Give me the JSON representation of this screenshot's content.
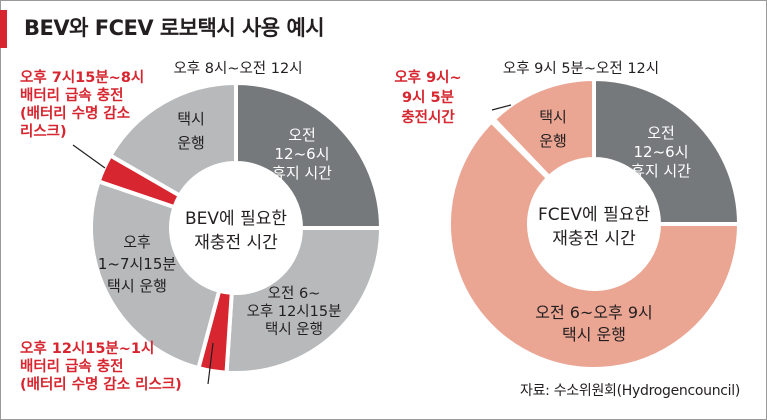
{
  "title": "BEV와 FCEV 로보택시 사용 예시",
  "source": "자료: 수소위원회(Hydrogencouncil)",
  "colors": {
    "dark_gray": "#76797b",
    "light_gray": "#b7b9bb",
    "red": "#d7262f",
    "salmon": "#eba593",
    "white": "#ffffff",
    "text": "#231f20"
  },
  "chart_data": [
    {
      "type": "pie",
      "center_label": [
        "BEV에 필요한",
        "재충전 시간"
      ],
      "top_label": "오후 8시~오전 12시",
      "slices": [
        {
          "value": 6,
          "fill": "#76797b",
          "lines": [
            "오전",
            "12~6시",
            "휴지 시간"
          ],
          "text_color": "#ffffff"
        },
        {
          "value": 6.25,
          "fill": "#b7b9bb",
          "lines": [
            "오전 6~",
            "오후 12시15분",
            "택시 운행"
          ],
          "text_color": "#231f20"
        },
        {
          "value": 0.75,
          "fill": "#d7262f",
          "lines": [
            "오후 12시15분~1시",
            "배터리 급속 충전",
            "(배터리 수명 감소 리스크)"
          ],
          "text_color": "#d7262f"
        },
        {
          "value": 6.25,
          "fill": "#b7b9bb",
          "lines": [
            "오후",
            "1~7시15분",
            "택시 운행"
          ],
          "text_color": "#231f20"
        },
        {
          "value": 0.75,
          "fill": "#d7262f",
          "lines": [
            "오후 7시15분~8시",
            "배터리 급속 충전",
            "(배터리 수명 감소",
            "리스크)"
          ],
          "text_color": "#d7262f"
        },
        {
          "value": 4,
          "fill": "#b7b9bb",
          "lines": [
            "택시",
            "운행"
          ],
          "text_color": "#231f20"
        }
      ]
    },
    {
      "type": "pie",
      "center_label": [
        "FCEV에 필요한",
        "재충전 시간"
      ],
      "top_label": "오후 9시 5분~오전 12시",
      "slices": [
        {
          "value": 6,
          "fill": "#76797b",
          "lines": [
            "오전",
            "12~6시",
            "휴지 시간"
          ],
          "text_color": "#ffffff"
        },
        {
          "value": 15,
          "fill": "#eba593",
          "lines": [
            "오전 6~오후 9시",
            "택시 운행"
          ],
          "text_color": "#231f20"
        },
        {
          "value": 0.0833,
          "fill": "#d7262f",
          "lines": [
            "오후 9시~",
            "9시 5분",
            "충전시간"
          ],
          "text_color": "#d7262f"
        },
        {
          "value": 2.9167,
          "fill": "#eba593",
          "lines": [
            "택시",
            "운행"
          ],
          "text_color": "#231f20"
        }
      ]
    }
  ]
}
